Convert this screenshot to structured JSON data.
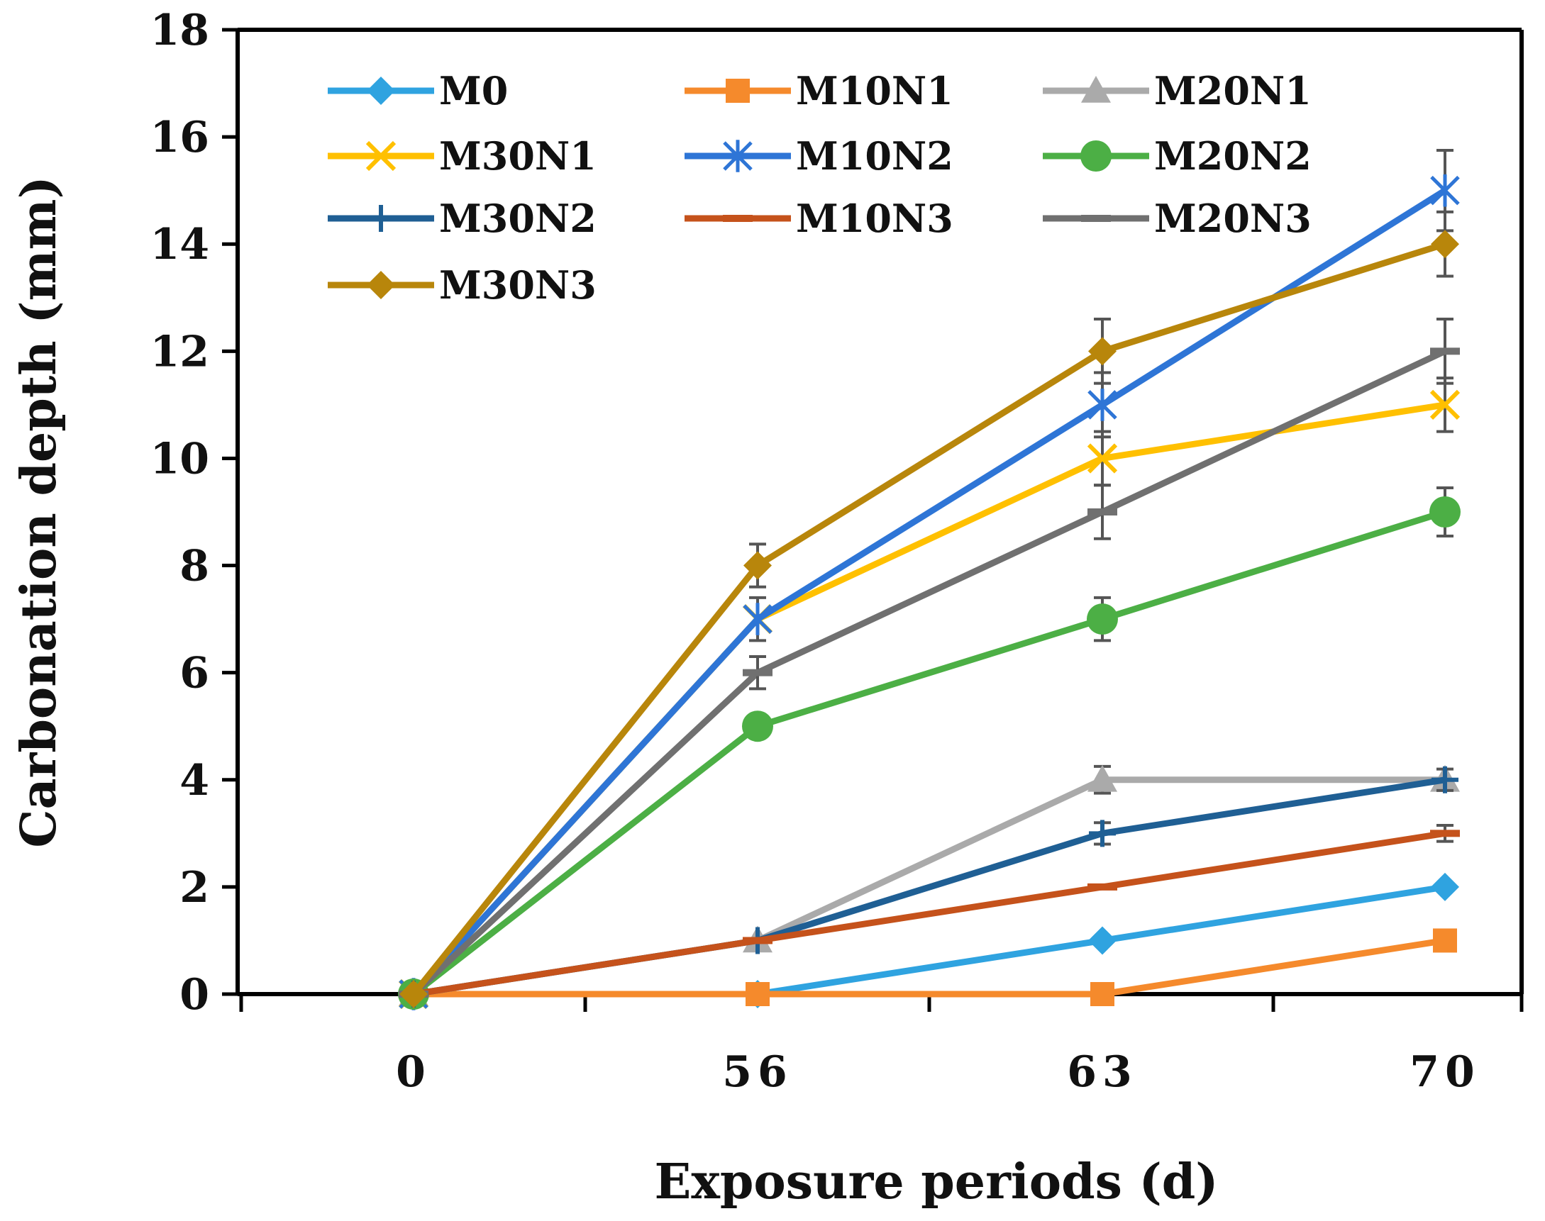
{
  "chart_data": {
    "type": "line",
    "title": "",
    "xlabel": "Exposure periods (d)",
    "ylabel": "Carbonation depth (mm)",
    "categories": [
      "0",
      "56",
      "63",
      "70"
    ],
    "yticks": [
      "0",
      "2",
      "4",
      "6",
      "8",
      "10",
      "12",
      "14",
      "16",
      "18"
    ],
    "ylim": [
      0,
      18
    ],
    "grid": false,
    "legend_position": "top-left inside plot, 3 columns",
    "series": [
      {
        "name": "M0",
        "color": "#2fa3e0",
        "marker": "diamond",
        "values": [
          0,
          0,
          1,
          2
        ],
        "errors": [
          0,
          0,
          0,
          0
        ]
      },
      {
        "name": "M10N1",
        "color": "#f58a2c",
        "marker": "square",
        "values": [
          0,
          0,
          0,
          1
        ],
        "errors": [
          0,
          0,
          0,
          0
        ]
      },
      {
        "name": "M20N1",
        "color": "#aaaaaa",
        "marker": "triangle",
        "values": [
          0,
          1,
          4,
          4
        ],
        "errors": [
          0,
          0,
          0.25,
          0
        ]
      },
      {
        "name": "M30N1",
        "color": "#ffc000",
        "marker": "x",
        "values": [
          0,
          7,
          10,
          11
        ],
        "errors": [
          0,
          0,
          0.5,
          0.5
        ]
      },
      {
        "name": "M10N2",
        "color": "#2e75d6",
        "marker": "star",
        "values": [
          0,
          7,
          11,
          15
        ],
        "errors": [
          0,
          0.4,
          0.6,
          0.75
        ]
      },
      {
        "name": "M20N2",
        "color": "#4caf45",
        "marker": "circle",
        "values": [
          0,
          5,
          7,
          9
        ],
        "errors": [
          0,
          0,
          0.4,
          0.45
        ]
      },
      {
        "name": "M30N2",
        "color": "#1f5f94",
        "marker": "plus",
        "values": [
          0,
          1,
          3,
          4
        ],
        "errors": [
          0,
          0,
          0.2,
          0.2
        ]
      },
      {
        "name": "M10N3",
        "color": "#c5521b",
        "marker": "dash",
        "values": [
          0,
          1,
          2,
          3
        ],
        "errors": [
          0,
          0,
          0,
          0.15
        ]
      },
      {
        "name": "M20N3",
        "color": "#707070",
        "marker": "dash",
        "values": [
          0,
          6,
          9,
          12
        ],
        "errors": [
          0,
          0.3,
          0.5,
          0.6
        ]
      },
      {
        "name": "M30N3",
        "color": "#b8860b",
        "marker": "diamond",
        "values": [
          0,
          8,
          12,
          14
        ],
        "errors": [
          0,
          0.4,
          0.6,
          0.6
        ]
      }
    ]
  }
}
